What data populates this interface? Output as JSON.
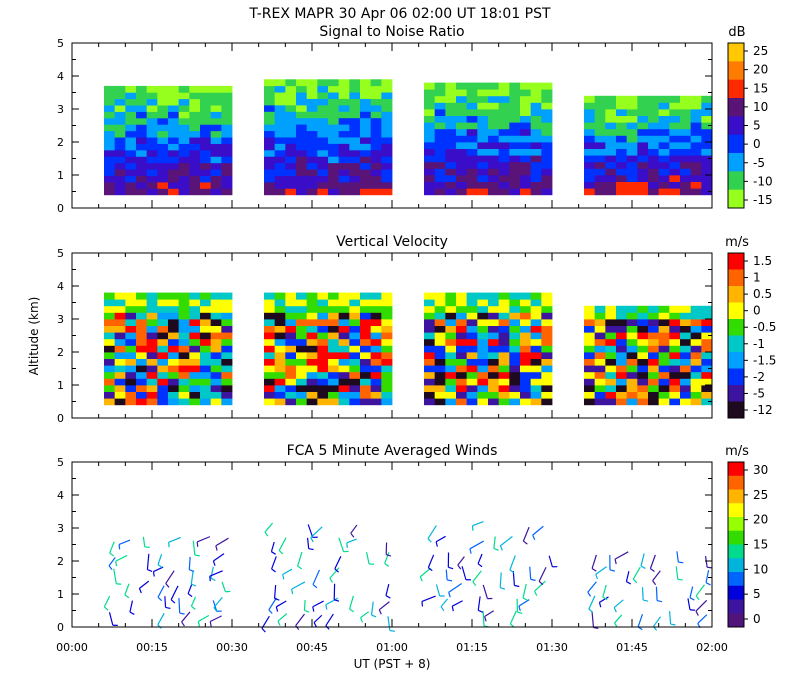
{
  "header": {
    "title": "T-REX   MAPR 30 Apr 06   02:00 UT   18:01   PST"
  },
  "colors": {
    "plot_background": "#ffffff",
    "frame": "#000000",
    "text": "#000000"
  },
  "chart_data": [
    {
      "type": "heatmap",
      "title": "Signal to Noise Ratio",
      "ylabel": "",
      "ylim": [
        0,
        5
      ],
      "yticks": [
        "0",
        "1",
        "2",
        "3",
        "4",
        "5"
      ],
      "xlim_minutes": [
        0,
        120
      ],
      "colorbar": {
        "unit": "dB",
        "labels": [
          "25",
          "20",
          "15",
          "10",
          "5",
          "0",
          "-5",
          "-10",
          "-15"
        ],
        "colors": [
          "#ffc800",
          "#ff7c00",
          "#ff2a00",
          "#5a1478",
          "#3a0ec8",
          "#0032ff",
          "#00a0ff",
          "#32d250",
          "#96ff1e"
        ]
      },
      "data_segments_minutes": [
        [
          6,
          30
        ],
        [
          36,
          60
        ],
        [
          66,
          90
        ],
        [
          96,
          120
        ]
      ],
      "data_top_km": [
        3.7,
        3.9,
        3.8,
        3.4
      ]
    },
    {
      "type": "heatmap",
      "title": "Vertical Velocity",
      "ylabel": "Altitude (km)",
      "ylim": [
        0,
        5
      ],
      "yticks": [
        "0",
        "1",
        "2",
        "3",
        "4",
        "5"
      ],
      "xlim_minutes": [
        0,
        120
      ],
      "colorbar": {
        "unit": "m/s",
        "labels": [
          "1.5",
          "1",
          "0.5",
          "0",
          "-0.5",
          "-1",
          "-1.5",
          "-2",
          "-5",
          "-12"
        ],
        "colors": [
          "#ff0000",
          "#ff6400",
          "#ffb400",
          "#ffff00",
          "#32dc00",
          "#00c8c8",
          "#00a0ff",
          "#0032ff",
          "#3c14a0",
          "#1e0a1e"
        ]
      },
      "data_segments_minutes": [
        [
          6,
          30
        ],
        [
          36,
          60
        ],
        [
          66,
          90
        ],
        [
          96,
          120
        ]
      ],
      "data_top_km": [
        3.8,
        3.8,
        3.8,
        3.4
      ]
    },
    {
      "type": "scatter",
      "subtype": "wind-barbs",
      "title": "FCA 5 Minute Averaged Winds",
      "ylabel": "",
      "ylim": [
        0,
        5
      ],
      "yticks": [
        "0",
        "1",
        "2",
        "3",
        "4",
        "5"
      ],
      "xlim_minutes": [
        0,
        120
      ],
      "xticks": [
        "00:00",
        "00:15",
        "00:30",
        "00:45",
        "01:00",
        "01:15",
        "01:30",
        "01:45",
        "02:00"
      ],
      "xlabel": "UT  (PST + 8)",
      "colorbar": {
        "unit": "m/s",
        "labels": [
          "30",
          "25",
          "20",
          "15",
          "10",
          "5",
          "0"
        ],
        "colors": [
          "#ff0000",
          "#ff6400",
          "#ffb400",
          "#ffff00",
          "#96ff00",
          "#32dc00",
          "#00dc8c",
          "#00b4dc",
          "#0064ff",
          "#0000dc",
          "#3c14a0",
          "#50147a"
        ]
      },
      "data_segments_minutes": [
        [
          6,
          30
        ],
        [
          36,
          60
        ],
        [
          66,
          90
        ],
        [
          96,
          120
        ]
      ],
      "barb_top_km": [
        3.0,
        3.1,
        3.2,
        2.5
      ]
    }
  ]
}
